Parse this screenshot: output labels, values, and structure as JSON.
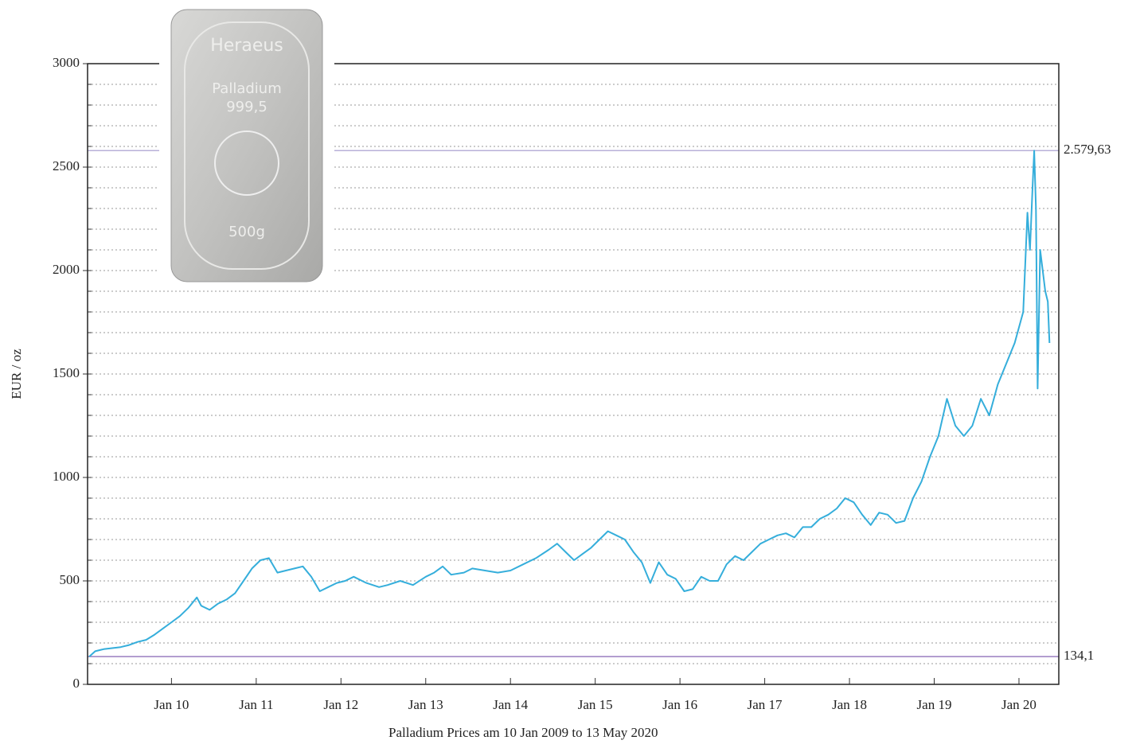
{
  "chart_data": {
    "type": "line",
    "title": "Palladium Prices am 10 Jan 2009 to 13 May 2020",
    "y_label": "EUR / oz",
    "image_texts": [
      "Heraeus",
      "Palladium",
      "999,5",
      "500g"
    ],
    "xlim": [
      2009.01,
      2020.47
    ],
    "ylim": [
      0,
      3000
    ],
    "xticks": [
      {
        "value": 2010,
        "label": "Jan 10"
      },
      {
        "value": 2011,
        "label": "Jan 11"
      },
      {
        "value": 2012,
        "label": "Jan 12"
      },
      {
        "value": 2013,
        "label": "Jan 13"
      },
      {
        "value": 2014,
        "label": "Jan 14"
      },
      {
        "value": 2015,
        "label": "Jan 15"
      },
      {
        "value": 2016,
        "label": "Jan 16"
      },
      {
        "value": 2017,
        "label": "Jan 17"
      },
      {
        "value": 2018,
        "label": "Jan 18"
      },
      {
        "value": 2019,
        "label": "Jan 19"
      },
      {
        "value": 2020,
        "label": "Jan 20"
      }
    ],
    "yticks": [
      0,
      500,
      1000,
      1500,
      2000,
      2500,
      3000
    ],
    "yminorticks": [
      100,
      200,
      300,
      400,
      500,
      600,
      700,
      800,
      900,
      1000,
      1100,
      1200,
      1300,
      1400,
      1500,
      1600,
      1700,
      1800,
      1900,
      2000,
      2100,
      2200,
      2300,
      2400,
      2500,
      2600,
      2700,
      2800,
      2900
    ],
    "grid": true,
    "ref_lines": [
      {
        "value": 2579.63,
        "label": "2.579,63",
        "color": "#b8b0d8"
      },
      {
        "value": 134.1,
        "label": "134,1",
        "color": "#9a7ec0"
      }
    ],
    "series": [
      {
        "name": "Palladium",
        "color": "#35aedb",
        "x": [
          2009.03,
          2009.1,
          2009.2,
          2009.3,
          2009.4,
          2009.5,
          2009.6,
          2009.7,
          2009.8,
          2009.9,
          2010.0,
          2010.1,
          2010.2,
          2010.3,
          2010.35,
          2010.45,
          2010.55,
          2010.65,
          2010.75,
          2010.85,
          2010.95,
          2011.05,
          2011.15,
          2011.25,
          2011.35,
          2011.45,
          2011.55,
          2011.65,
          2011.75,
          2011.85,
          2011.95,
          2012.05,
          2012.15,
          2012.3,
          2012.45,
          2012.55,
          2012.7,
          2012.85,
          2013.0,
          2013.1,
          2013.2,
          2013.3,
          2013.45,
          2013.55,
          2013.7,
          2013.85,
          2014.0,
          2014.15,
          2014.3,
          2014.45,
          2014.55,
          2014.65,
          2014.75,
          2014.85,
          2014.95,
          2015.05,
          2015.15,
          2015.25,
          2015.35,
          2015.45,
          2015.55,
          2015.65,
          2015.75,
          2015.85,
          2015.95,
          2016.05,
          2016.15,
          2016.25,
          2016.35,
          2016.45,
          2016.55,
          2016.65,
          2016.75,
          2016.85,
          2016.95,
          2017.05,
          2017.15,
          2017.25,
          2017.35,
          2017.45,
          2017.55,
          2017.65,
          2017.75,
          2017.85,
          2017.95,
          2018.05,
          2018.15,
          2018.25,
          2018.35,
          2018.45,
          2018.55,
          2018.65,
          2018.75,
          2018.85,
          2018.95,
          2019.05,
          2019.15,
          2019.25,
          2019.35,
          2019.45,
          2019.55,
          2019.65,
          2019.75,
          2019.85,
          2019.95,
          2020.05,
          2020.1,
          2020.13,
          2020.16,
          2020.18,
          2020.2,
          2020.22,
          2020.25,
          2020.28,
          2020.31,
          2020.34,
          2020.36
        ],
        "values": [
          134.1,
          160,
          170,
          175,
          180,
          190,
          205,
          215,
          240,
          270,
          300,
          330,
          370,
          420,
          380,
          360,
          390,
          410,
          440,
          500,
          560,
          600,
          610,
          540,
          550,
          560,
          570,
          520,
          450,
          470,
          490,
          500,
          520,
          490,
          470,
          480,
          500,
          480,
          520,
          540,
          570,
          530,
          540,
          560,
          550,
          540,
          550,
          580,
          610,
          650,
          680,
          640,
          600,
          630,
          660,
          700,
          740,
          720,
          700,
          640,
          590,
          490,
          590,
          530,
          510,
          450,
          460,
          520,
          500,
          500,
          580,
          620,
          600,
          640,
          680,
          700,
          720,
          730,
          710,
          760,
          760,
          800,
          820,
          850,
          900,
          880,
          820,
          770,
          830,
          820,
          780,
          790,
          900,
          980,
          1100,
          1200,
          1380,
          1250,
          1200,
          1250,
          1380,
          1300,
          1450,
          1550,
          1650,
          1800,
          2280,
          2100,
          2400,
          2579.63,
          2300,
          1430,
          2100,
          2000,
          1900,
          1850,
          1650
        ]
      }
    ]
  }
}
